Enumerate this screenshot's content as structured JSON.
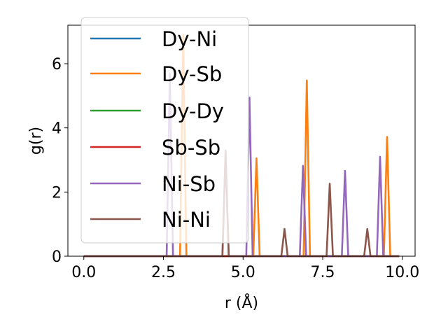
{
  "chart_data": {
    "type": "line",
    "title": "",
    "xlabel": "r (Å)",
    "ylabel": "g(r)",
    "xlim": [
      -0.5,
      10.4
    ],
    "ylim": [
      0,
      7.2
    ],
    "xticks": [
      0.0,
      2.5,
      5.0,
      7.5,
      10.0
    ],
    "xtick_labels": [
      "0.0",
      "2.5",
      "5.0",
      "7.5",
      "10.0"
    ],
    "yticks": [
      0,
      2,
      4,
      6
    ],
    "ytick_labels": [
      "0",
      "2",
      "4",
      "6"
    ],
    "x_range": [
      0.0,
      9.9
    ],
    "peak_halfwidth": 0.1,
    "grid": false,
    "legend": "upper left",
    "series": [
      {
        "name": "Dy-Ni",
        "color": "#1f77b4",
        "peaks": []
      },
      {
        "name": "Dy-Sb",
        "color": "#ff7f0e",
        "peaks": [
          [
            3.12,
            6.9
          ],
          [
            5.42,
            3.05
          ],
          [
            7.0,
            5.48
          ],
          [
            9.52,
            3.72
          ]
        ]
      },
      {
        "name": "Dy-Dy",
        "color": "#2ca02c",
        "peaks": []
      },
      {
        "name": "Sb-Sb",
        "color": "#d62728",
        "peaks": []
      },
      {
        "name": "Ni-Sb",
        "color": "#9467bd",
        "peaks": [
          [
            2.7,
            5.7
          ],
          [
            4.45,
            3.1
          ],
          [
            5.2,
            4.95
          ],
          [
            6.88,
            2.82
          ],
          [
            8.2,
            2.66
          ],
          [
            9.3,
            3.1
          ]
        ]
      },
      {
        "name": "Ni-Ni",
        "color": "#8c564b",
        "peaks": [
          [
            4.45,
            3.3
          ],
          [
            6.3,
            0.85
          ],
          [
            7.72,
            2.26
          ],
          [
            8.9,
            0.85
          ]
        ]
      }
    ]
  }
}
